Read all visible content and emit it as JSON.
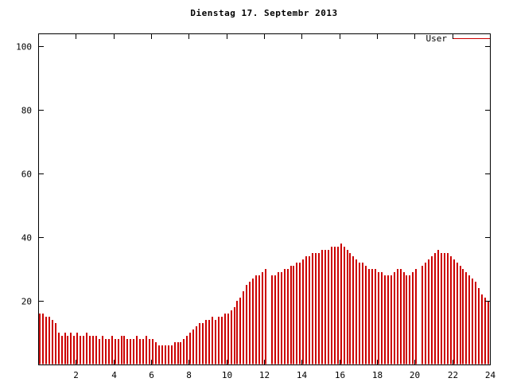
{
  "chart_data": {
    "type": "bar",
    "title": "Dienstag 17. Septembr 2013",
    "legend": [
      {
        "label": "User",
        "color": "#cc0000"
      }
    ],
    "legend_position": "top-right",
    "xlabel": "",
    "ylabel": "",
    "x_unit": "hour of day",
    "x_interval_minutes": 10,
    "xlim": [
      0,
      24
    ],
    "ylim": [
      0,
      104
    ],
    "xticks": [
      2,
      4,
      6,
      8,
      10,
      12,
      14,
      16,
      18,
      20,
      22,
      24
    ],
    "yticks": [
      20,
      40,
      60,
      80,
      100
    ],
    "grid": false,
    "bar_color": "#cc0000",
    "axis_color": "#000000",
    "background": "#ffffff",
    "values": [
      16,
      16,
      15,
      15,
      14,
      13,
      10,
      9,
      10,
      9,
      10,
      9,
      10,
      9,
      9,
      10,
      9,
      9,
      9,
      8,
      9,
      8,
      8,
      9,
      8,
      8,
      9,
      9,
      8,
      8,
      8,
      9,
      8,
      8,
      9,
      8,
      8,
      7,
      6,
      6,
      6,
      6,
      6,
      7,
      7,
      7,
      8,
      9,
      10,
      11,
      12,
      13,
      13,
      14,
      14,
      15,
      14,
      15,
      15,
      16,
      16,
      17,
      18,
      20,
      21,
      23,
      25,
      26,
      27,
      28,
      28,
      29,
      30,
      0,
      28,
      28,
      29,
      29,
      30,
      30,
      31,
      31,
      32,
      32,
      33,
      34,
      34,
      35,
      35,
      35,
      36,
      36,
      36,
      37,
      37,
      37,
      38,
      37,
      36,
      35,
      34,
      33,
      32,
      32,
      31,
      30,
      30,
      30,
      29,
      29,
      28,
      28,
      28,
      29,
      30,
      30,
      29,
      28,
      28,
      29,
      30,
      0,
      31,
      32,
      33,
      34,
      35,
      36,
      35,
      35,
      35,
      34,
      33,
      32,
      31,
      30,
      29,
      28,
      27,
      26,
      24,
      22,
      21,
      20
    ]
  }
}
